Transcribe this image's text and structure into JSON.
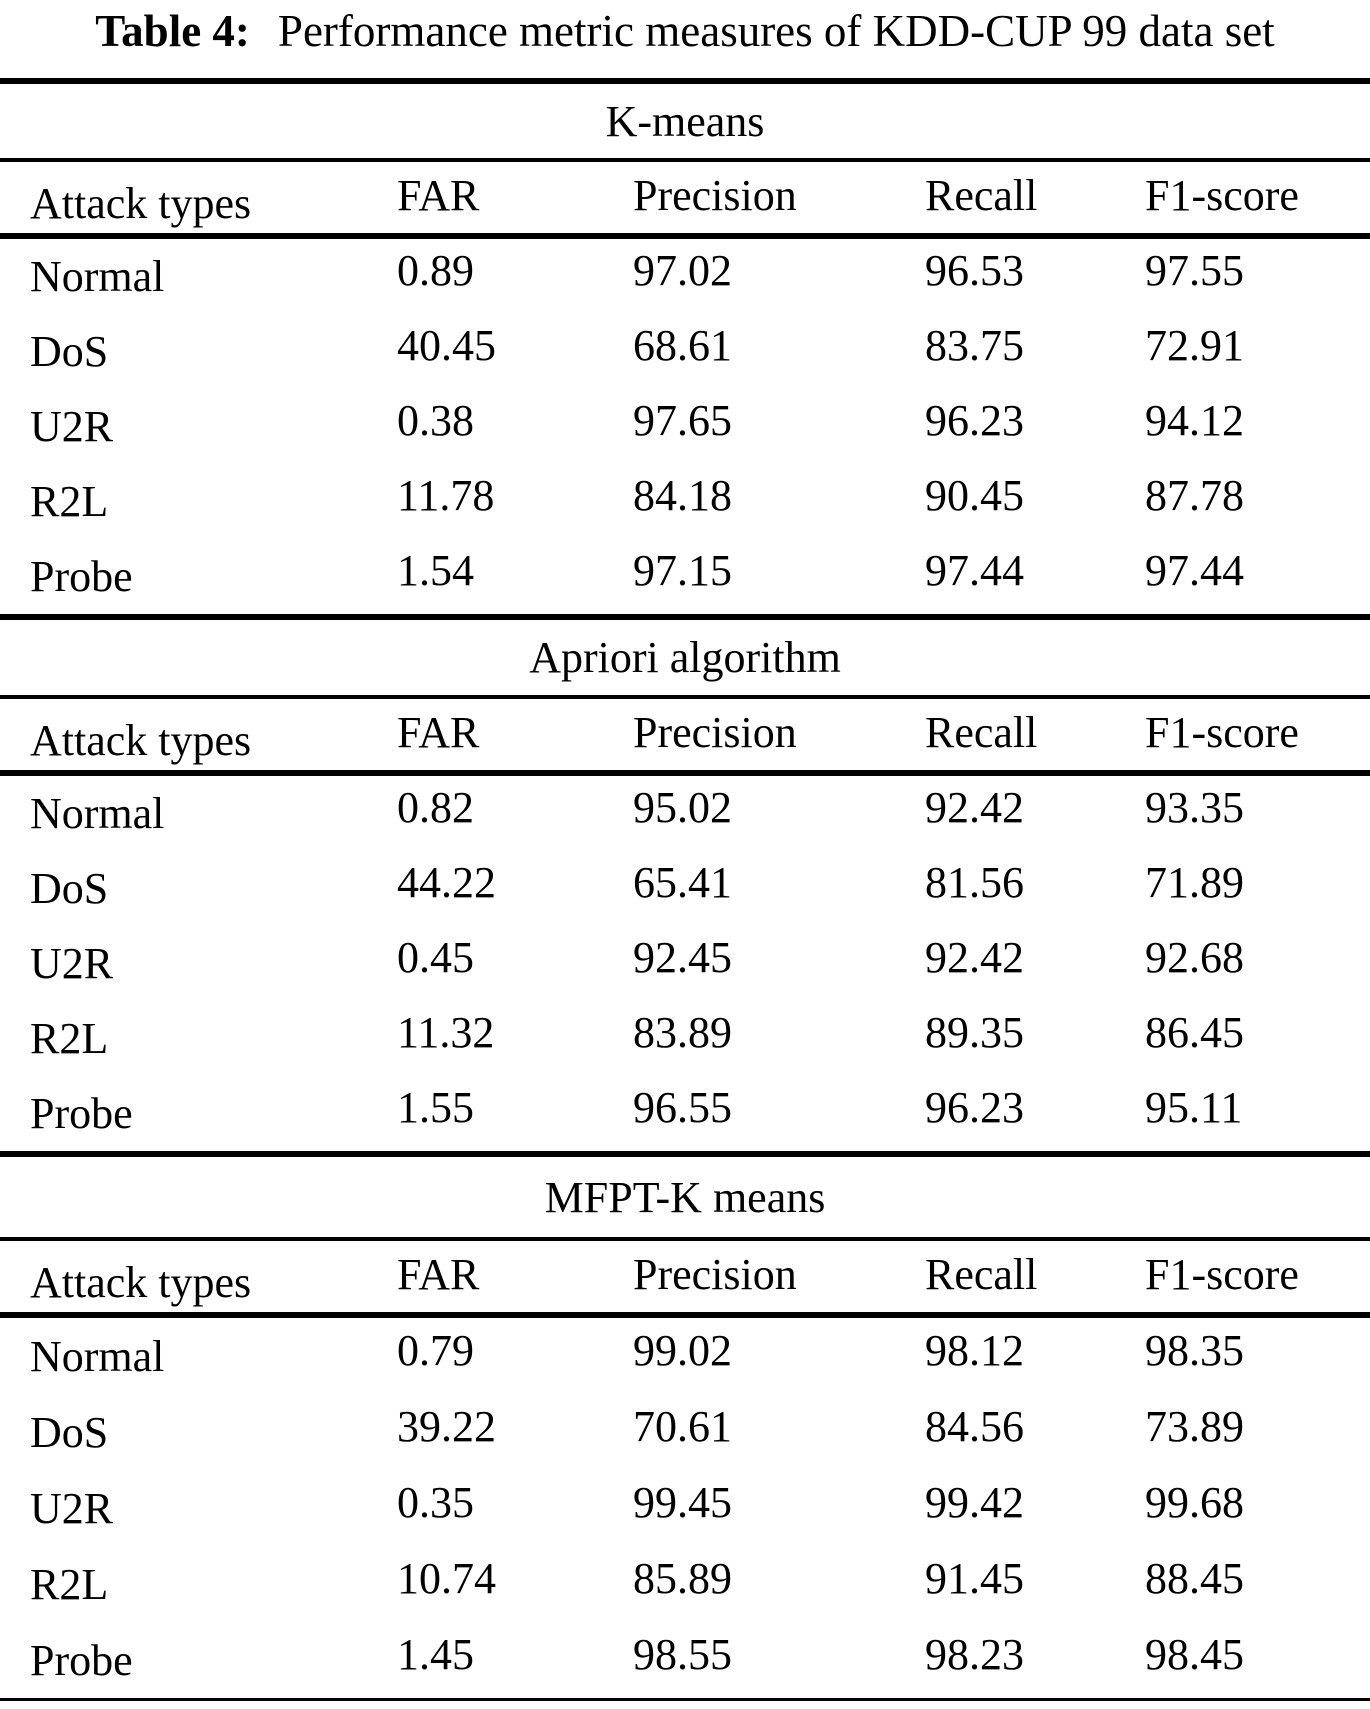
{
  "caption": {
    "label": "Table 4:",
    "text": "Performance metric measures of KDD-CUP 99 data set"
  },
  "colors": {
    "text": "#000000",
    "background": "#ffffff",
    "rule": "#000000"
  },
  "tables": [
    {
      "title": "K-means",
      "columns": [
        "Attack types",
        "FAR",
        "Precision",
        "Recall",
        "F1-score"
      ],
      "rows": [
        [
          "Normal",
          "0.89",
          "97.02",
          "96.53",
          "97.55"
        ],
        [
          "DoS",
          "40.45",
          "68.61",
          "83.75",
          "72.91"
        ],
        [
          "U2R",
          "0.38",
          "97.65",
          "96.23",
          "94.12"
        ],
        [
          "R2L",
          "11.78",
          "84.18",
          "90.45",
          "87.78"
        ],
        [
          "Probe",
          "1.54",
          "97.15",
          "97.44",
          "97.44"
        ]
      ]
    },
    {
      "title": "Apriori algorithm",
      "columns": [
        "Attack types",
        "FAR",
        "Precision",
        "Recall",
        "F1-score"
      ],
      "rows": [
        [
          "Normal",
          "0.82",
          "95.02",
          "92.42",
          "93.35"
        ],
        [
          "DoS",
          "44.22",
          "65.41",
          "81.56",
          "71.89"
        ],
        [
          "U2R",
          "0.45",
          "92.45",
          "92.42",
          "92.68"
        ],
        [
          "R2L",
          "11.32",
          "83.89",
          "89.35",
          "86.45"
        ],
        [
          "Probe",
          "1.55",
          "96.55",
          "96.23",
          "95.11"
        ]
      ]
    },
    {
      "title": "MFPT-K means",
      "columns": [
        "Attack types",
        "FAR",
        "Precision",
        "Recall",
        "F1-score"
      ],
      "rows": [
        [
          "Normal",
          "0.79",
          "99.02",
          "98.12",
          "98.35"
        ],
        [
          "DoS",
          "39.22",
          "70.61",
          "84.56",
          "73.89"
        ],
        [
          "U2R",
          "0.35",
          "99.45",
          "99.42",
          "99.68"
        ],
        [
          "R2L",
          "10.74",
          "85.89",
          "91.45",
          "88.45"
        ],
        [
          "Probe",
          "1.45",
          "98.55",
          "98.23",
          "98.45"
        ]
      ]
    }
  ]
}
